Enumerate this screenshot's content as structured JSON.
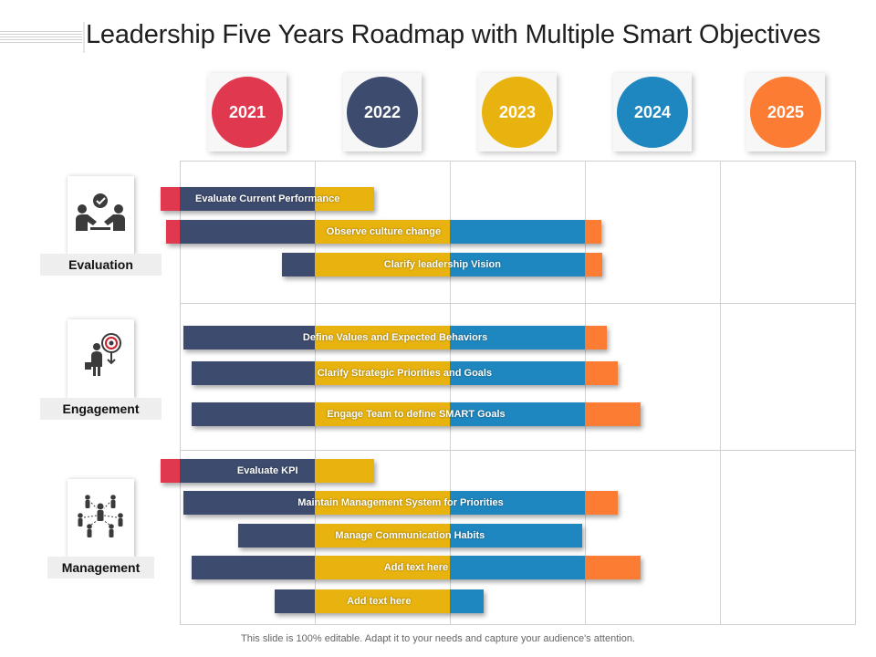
{
  "title": "Leadership Five Years Roadmap with Multiple Smart Objectives",
  "footer": "This slide is 100% editable. Adapt it to your needs and capture your audience's attention.",
  "colors": {
    "red": "#e0394f",
    "navy": "#3d4b6e",
    "yellow": "#e8b30e",
    "blue": "#1f87c0",
    "orange": "#fd7c33"
  },
  "years": [
    {
      "label": "2021",
      "color": "#e0394f"
    },
    {
      "label": "2022",
      "color": "#3d4b6e"
    },
    {
      "label": "2023",
      "color": "#e8b30e"
    },
    {
      "label": "2024",
      "color": "#1f87c0"
    },
    {
      "label": "2025",
      "color": "#fd7c33"
    }
  ],
  "categories": [
    {
      "label": "Evaluation",
      "icon": "handshake-check-icon"
    },
    {
      "label": "Engagement",
      "icon": "businessman-target-icon"
    },
    {
      "label": "Management",
      "icon": "team-network-icon"
    }
  ],
  "tasks": [
    {
      "label": "Evaluate Current Performance",
      "start": 2020.86,
      "end": 2022.44
    },
    {
      "label": "Observe culture change",
      "start": 2020.9,
      "end": 2024.12
    },
    {
      "label": "Clarify leadership Vision",
      "start": 2021.76,
      "end": 2024.13
    },
    {
      "label": "Define Values and Expected Behaviors",
      "start": 2021.03,
      "end": 2024.16
    },
    {
      "label": "Clarify Strategic Priorities and Goals",
      "start": 2021.09,
      "end": 2024.24
    },
    {
      "label": "Engage Team to define SMART Goals",
      "start": 2021.09,
      "end": 2024.41
    },
    {
      "label": "Evaluate KPI",
      "start": 2020.86,
      "end": 2022.44
    },
    {
      "label": "Maintain Management System for Priorities",
      "start": 2021.03,
      "end": 2024.24
    },
    {
      "label": "Manage Communication Habits",
      "start": 2021.43,
      "end": 2023.98
    },
    {
      "label": "Add text here",
      "start": 2021.09,
      "end": 2024.41
    },
    {
      "label": "Add text here",
      "start": 2021.7,
      "end": 2023.25
    }
  ]
}
